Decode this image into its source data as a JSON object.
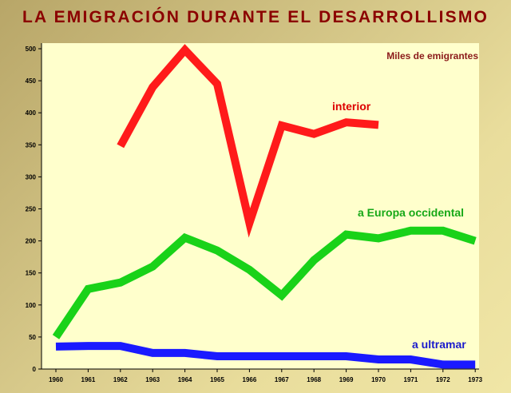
{
  "title": "LA EMIGRACIÓN DURANTE EL DESARROLLISMO",
  "colors": {
    "title": "#8b0000",
    "plot_background": "#ffffcc",
    "interior": "#ff1a1a",
    "europa": "#19d219",
    "ultramar": "#1a1aff",
    "unit_label": "#8b1a1a"
  },
  "chart_data": {
    "type": "line",
    "title": "LA EMIGRACIÓN DURANTE EL DESARROLLISMO",
    "unit_label": "Miles de emigrantes",
    "x": [
      "1960",
      "1961",
      "1962",
      "1963",
      "1964",
      "1965",
      "1966",
      "1967",
      "1968",
      "1969",
      "1970",
      "1971",
      "1972",
      "1973"
    ],
    "ylim": [
      0,
      500
    ],
    "yticks": [
      0,
      50,
      100,
      150,
      200,
      250,
      300,
      350,
      400,
      450,
      500
    ],
    "grid": false,
    "series": [
      {
        "key": "interior",
        "name": "interior",
        "color": "#ff1a1a",
        "values": [
          null,
          null,
          348,
          440,
          498,
          445,
          228,
          380,
          367,
          385,
          381,
          null,
          null,
          null
        ]
      },
      {
        "key": "europa",
        "name": "a Europa occidental",
        "color": "#19d219",
        "values": [
          50,
          125,
          135,
          160,
          205,
          185,
          155,
          115,
          170,
          210,
          204,
          216,
          216,
          200
        ]
      },
      {
        "key": "ultramar",
        "name": "a ultramar",
        "color": "#1a1aff",
        "values": [
          35,
          36,
          36,
          25,
          25,
          20,
          20,
          20,
          20,
          20,
          15,
          15,
          7,
          7
        ]
      }
    ]
  }
}
